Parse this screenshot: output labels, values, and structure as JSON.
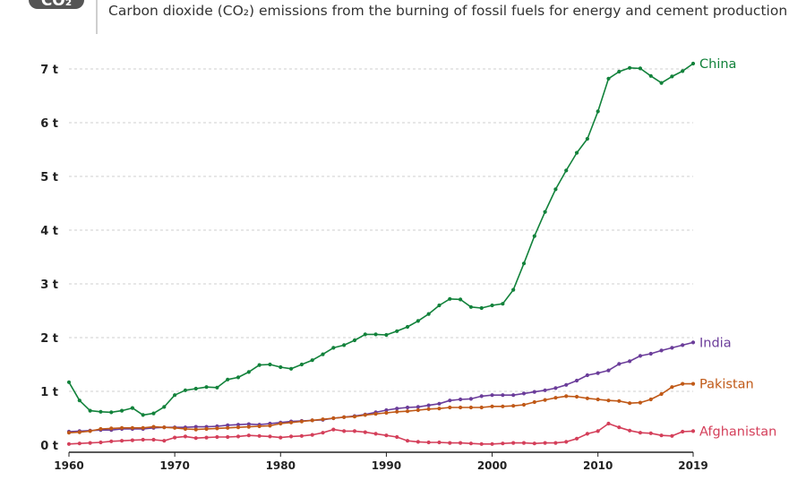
{
  "header": {
    "logo_text": "CO₂",
    "subtitle": "Carbon dioxide (CO₂) emissions from the burning of fossil fuels for energy and cement production"
  },
  "chart_data": {
    "type": "line",
    "title": "",
    "subtitle": "Carbon dioxide (CO₂) emissions from the burning of fossil fuels for energy and cement production",
    "xlabel": "",
    "ylabel": "",
    "xlim": [
      1960,
      2019
    ],
    "ylim": [
      0,
      7
    ],
    "yticks": [
      0,
      1,
      2,
      3,
      4,
      5,
      6,
      7
    ],
    "ytick_labels": [
      "0 t",
      "1 t",
      "2 t",
      "3 t",
      "4 t",
      "5 t",
      "6 t",
      "7 t"
    ],
    "xticks": [
      1960,
      1970,
      1980,
      1990,
      2000,
      2010,
      2019
    ],
    "xtick_labels": [
      "1960",
      "1970",
      "1980",
      "1990",
      "2000",
      "2010",
      "2019"
    ],
    "grid": "horizontal-dashed",
    "legend": "line-end labels",
    "x": [
      1960,
      1961,
      1962,
      1963,
      1964,
      1965,
      1966,
      1967,
      1968,
      1969,
      1970,
      1971,
      1972,
      1973,
      1974,
      1975,
      1976,
      1977,
      1978,
      1979,
      1980,
      1981,
      1982,
      1983,
      1984,
      1985,
      1986,
      1987,
      1988,
      1989,
      1990,
      1991,
      1992,
      1993,
      1994,
      1995,
      1996,
      1997,
      1998,
      1999,
      2000,
      2001,
      2002,
      2003,
      2004,
      2005,
      2006,
      2007,
      2008,
      2009,
      2010,
      2011,
      2012,
      2013,
      2014,
      2015,
      2016,
      2017,
      2018,
      2019
    ],
    "series": [
      {
        "name": "China",
        "color": "#12823b",
        "values": [
          1.17,
          0.83,
          0.64,
          0.62,
          0.61,
          0.64,
          0.69,
          0.56,
          0.59,
          0.71,
          0.93,
          1.02,
          1.05,
          1.08,
          1.07,
          1.22,
          1.26,
          1.36,
          1.49,
          1.5,
          1.45,
          1.42,
          1.5,
          1.58,
          1.69,
          1.81,
          1.86,
          1.95,
          2.06,
          2.06,
          2.05,
          2.12,
          2.2,
          2.31,
          2.44,
          2.6,
          2.72,
          2.71,
          2.57,
          2.55,
          2.6,
          2.63,
          2.89,
          3.38,
          3.89,
          4.34,
          4.76,
          5.11,
          5.44,
          5.7,
          6.21,
          6.82,
          6.95,
          7.02,
          7.01,
          6.87,
          6.74,
          6.86,
          6.96,
          7.1
        ]
      },
      {
        "name": "India",
        "color": "#6b3d9a",
        "values": [
          0.25,
          0.26,
          0.27,
          0.28,
          0.28,
          0.3,
          0.3,
          0.3,
          0.32,
          0.33,
          0.33,
          0.33,
          0.34,
          0.34,
          0.35,
          0.37,
          0.38,
          0.39,
          0.38,
          0.4,
          0.42,
          0.44,
          0.45,
          0.46,
          0.47,
          0.5,
          0.52,
          0.54,
          0.57,
          0.61,
          0.65,
          0.68,
          0.7,
          0.71,
          0.74,
          0.77,
          0.83,
          0.85,
          0.86,
          0.91,
          0.93,
          0.93,
          0.93,
          0.96,
          0.99,
          1.02,
          1.06,
          1.12,
          1.2,
          1.3,
          1.34,
          1.39,
          1.51,
          1.56,
          1.66,
          1.7,
          1.76,
          1.81,
          1.86,
          1.91
        ]
      },
      {
        "name": "Pakistan",
        "color": "#c05917",
        "values": [
          0.23,
          0.24,
          0.26,
          0.3,
          0.31,
          0.32,
          0.32,
          0.32,
          0.34,
          0.33,
          0.32,
          0.3,
          0.29,
          0.3,
          0.31,
          0.32,
          0.33,
          0.34,
          0.35,
          0.36,
          0.4,
          0.42,
          0.44,
          0.46,
          0.48,
          0.5,
          0.52,
          0.53,
          0.56,
          0.58,
          0.6,
          0.62,
          0.63,
          0.65,
          0.67,
          0.68,
          0.7,
          0.7,
          0.7,
          0.7,
          0.72,
          0.72,
          0.73,
          0.75,
          0.8,
          0.84,
          0.88,
          0.91,
          0.9,
          0.87,
          0.85,
          0.83,
          0.82,
          0.78,
          0.79,
          0.85,
          0.95,
          1.08,
          1.14,
          1.14
        ]
      },
      {
        "name": "Afghanistan",
        "color": "#d43f5a",
        "values": [
          0.02,
          0.03,
          0.04,
          0.05,
          0.07,
          0.08,
          0.09,
          0.1,
          0.1,
          0.08,
          0.14,
          0.16,
          0.13,
          0.14,
          0.15,
          0.15,
          0.16,
          0.18,
          0.17,
          0.16,
          0.14,
          0.16,
          0.17,
          0.19,
          0.23,
          0.29,
          0.26,
          0.26,
          0.24,
          0.21,
          0.18,
          0.15,
          0.08,
          0.06,
          0.05,
          0.05,
          0.04,
          0.04,
          0.03,
          0.02,
          0.02,
          0.03,
          0.04,
          0.04,
          0.03,
          0.04,
          0.04,
          0.06,
          0.12,
          0.21,
          0.26,
          0.4,
          0.33,
          0.27,
          0.23,
          0.22,
          0.18,
          0.17,
          0.25,
          0.26
        ]
      }
    ]
  }
}
